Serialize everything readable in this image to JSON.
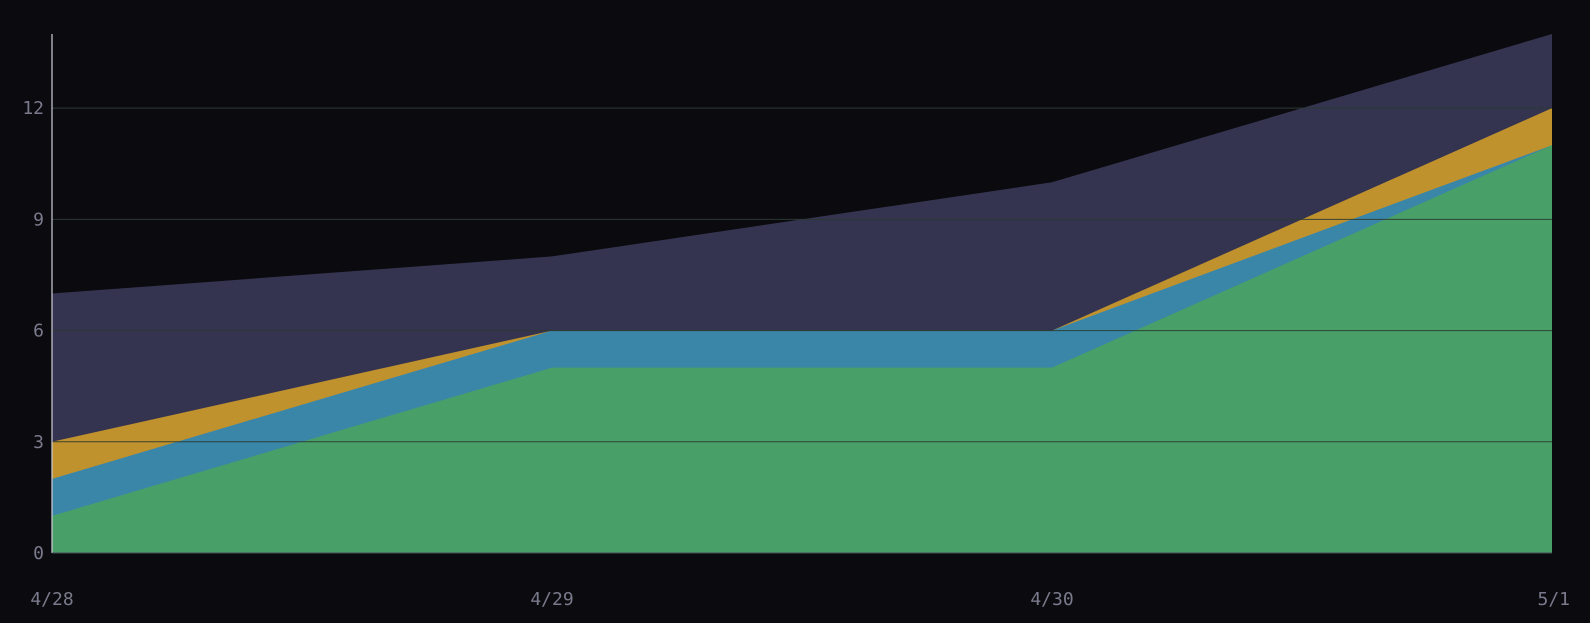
{
  "chart_data": {
    "type": "area",
    "stacked": false,
    "x": [
      "4/28",
      "4/29",
      "4/30",
      "5/1"
    ],
    "ylim": [
      0,
      14
    ],
    "yticks": [
      0,
      3,
      6,
      9,
      12
    ],
    "grid": true,
    "series": [
      {
        "values": [
          7,
          8,
          10,
          14
        ],
        "color": "#353450"
      },
      {
        "values": [
          3,
          6,
          6,
          12
        ],
        "color": "#c0922e"
      },
      {
        "values": [
          2,
          6,
          6,
          11
        ],
        "color": "#3a86a8"
      },
      {
        "values": [
          1,
          5,
          5,
          11
        ],
        "color": "#48a068"
      }
    ]
  }
}
